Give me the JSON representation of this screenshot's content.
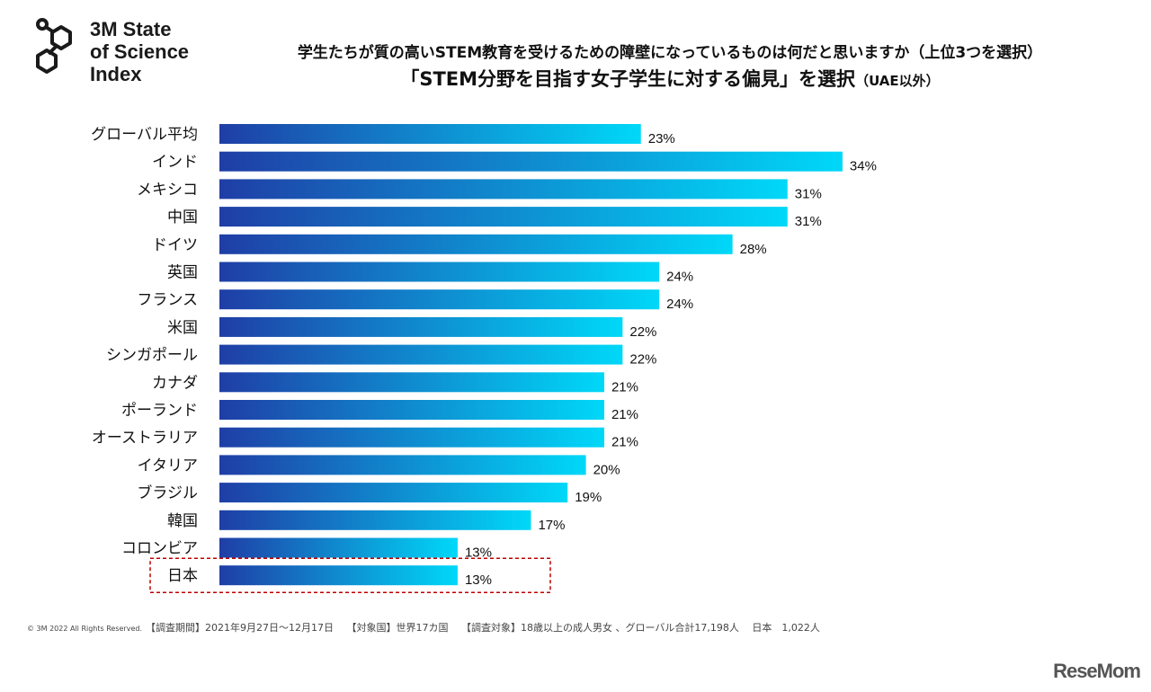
{
  "logo": {
    "line1": "3M State",
    "line2": "of Science",
    "line3": "Index"
  },
  "header": {
    "title1": "学生たちが質の高いSTEM教育を受けるための障壁になっているものは何だと思いますか（上位3つを選択）",
    "title2": "「STEM分野を目指す女子学生に対する偏見」を選択",
    "title2_note": "（UAE以外）"
  },
  "chart_data": {
    "type": "bar",
    "orientation": "horizontal",
    "categories": [
      "グローバル平均",
      "インド",
      "メキシコ",
      "中国",
      "ドイツ",
      "英国",
      "フランス",
      "米国",
      "シンガポール",
      "カナダ",
      "ポーランド",
      "オーストラリア",
      "イタリア",
      "ブラジル",
      "韓国",
      "コロンビア",
      "日本"
    ],
    "values": [
      23,
      34,
      31,
      31,
      28,
      24,
      24,
      22,
      22,
      21,
      21,
      21,
      20,
      19,
      17,
      13,
      13
    ],
    "labels": [
      "23%",
      "34%",
      "31%",
      "31%",
      "28%",
      "24%",
      "24%",
      "22%",
      "22%",
      "21%",
      "21%",
      "21%",
      "20%",
      "19%",
      "17%",
      "13%",
      "13%"
    ],
    "unit": "%",
    "highlighted": "日本",
    "colors": {
      "gradient_start": "#1f3ea6",
      "gradient_end": "#00d8f8",
      "highlight_box": "#c00000"
    },
    "grid": false
  },
  "footer": {
    "copyright": "© 3M  2022    All Rights Reserved.",
    "text": "【調査期間】2021年9月27日～12月17日　 【対象国】世界17カ国　 【調査対象】18歳以上の成人男女 、グローバル合計17,198人　 日本　1,022人"
  },
  "watermark": "ReseMom"
}
